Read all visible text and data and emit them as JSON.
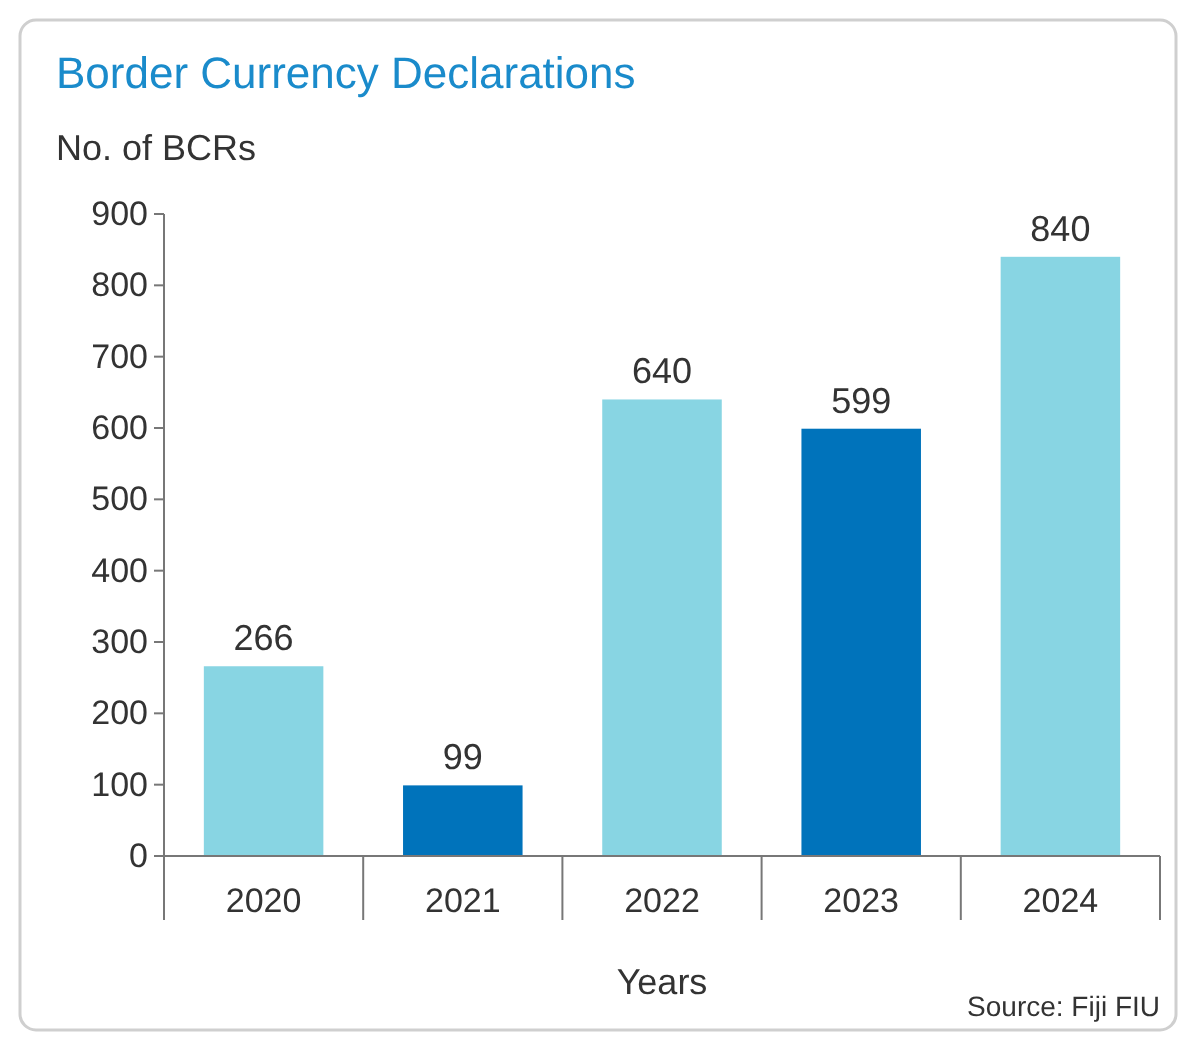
{
  "chart_data": {
    "type": "bar",
    "title": "Border Currency Declarations",
    "ylabel": "No. of BCRs",
    "xlabel": "Years",
    "annotations": [
      "Source: Fiji FIU"
    ],
    "categories": [
      "2020",
      "2021",
      "2022",
      "2023",
      "2024"
    ],
    "values": [
      266,
      99,
      640,
      599,
      840
    ],
    "colors": [
      "#88d5e3",
      "#0073bb",
      "#88d5e3",
      "#0073bb",
      "#88d5e3"
    ],
    "ylim": [
      0,
      900
    ],
    "yticks": [
      0,
      100,
      200,
      300,
      400,
      500,
      600,
      700,
      800,
      900
    ],
    "grid": false,
    "data_labels": true
  }
}
